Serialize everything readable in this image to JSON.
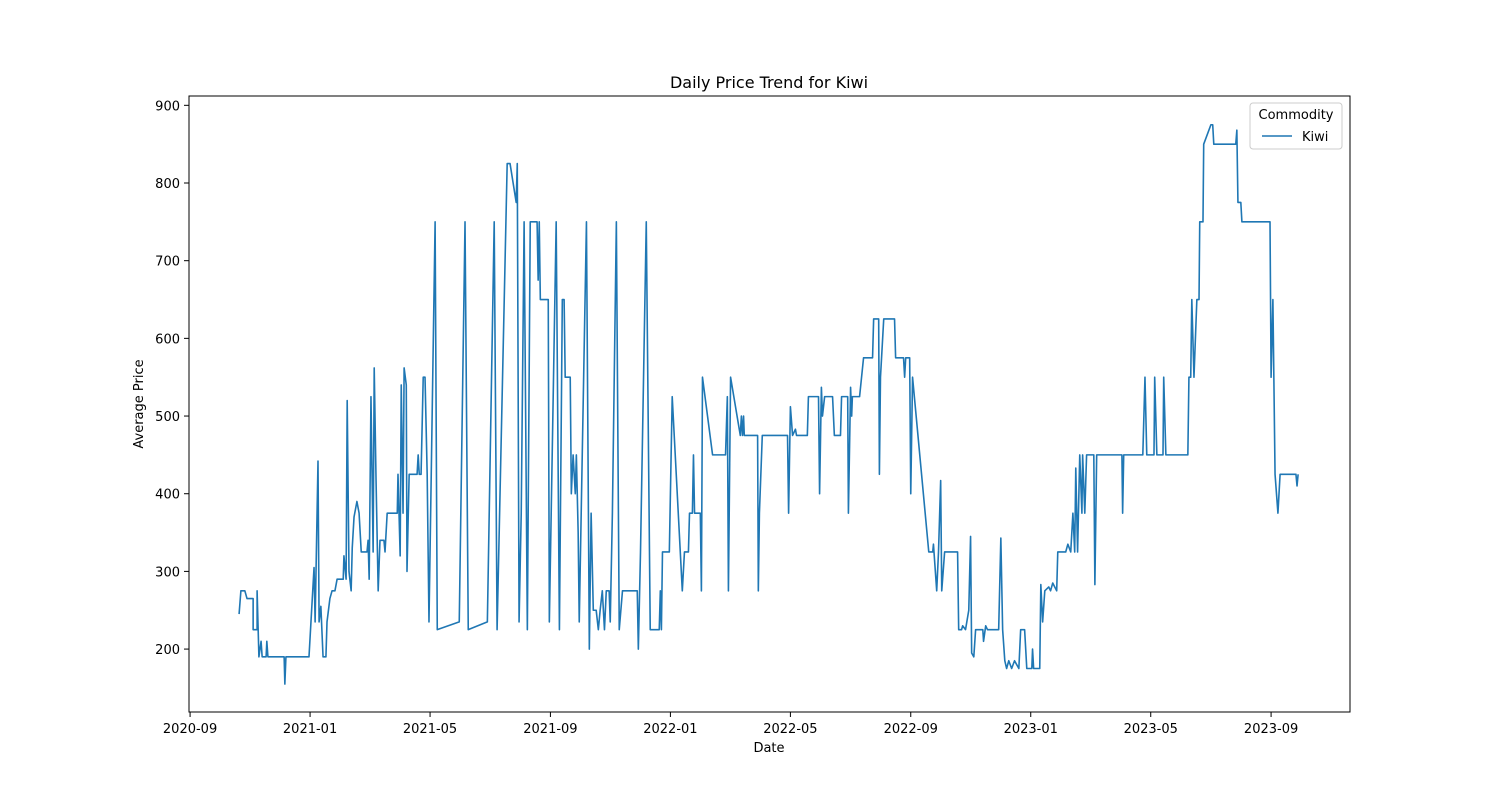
{
  "chart_data": {
    "type": "line",
    "title": "Daily Price Trend for Kiwi",
    "xlabel": "Date",
    "ylabel": "Average Price",
    "legend_title": "Commodity",
    "legend_loc": "upper right",
    "x": [
      2020.803,
      2020.808,
      2020.819,
      2020.825,
      2020.842,
      2020.842,
      2020.853,
      2020.853,
      2020.858,
      2020.864,
      2020.867,
      2020.878,
      2020.88,
      2020.883,
      2020.928,
      2020.93,
      2020.933,
      2020.997,
      2021.011,
      2021.014,
      2021.022,
      2021.025,
      2021.03,
      2021.036,
      2021.044,
      2021.047,
      2021.055,
      2021.061,
      2021.069,
      2021.075,
      2021.092,
      2021.094,
      2021.1,
      2021.103,
      2021.108,
      2021.114,
      2021.117,
      2021.122,
      2021.13,
      2021.136,
      2021.142,
      2021.158,
      2021.161,
      2021.164,
      2021.169,
      2021.175,
      2021.178,
      2021.183,
      2021.189,
      2021.194,
      2021.205,
      2021.208,
      2021.214,
      2021.242,
      2021.244,
      2021.25,
      2021.253,
      2021.258,
      2021.261,
      2021.267,
      2021.269,
      2021.275,
      2021.297,
      2021.3,
      2021.303,
      2021.308,
      2021.314,
      2021.319,
      2021.325,
      2021.33,
      2021.347,
      2021.353,
      2021.414,
      2021.43,
      2021.439,
      2021.492,
      2021.511,
      2021.519,
      2021.547,
      2021.555,
      2021.572,
      2021.575,
      2021.58,
      2021.586,
      2021.594,
      2021.603,
      2021.611,
      2021.63,
      2021.633,
      2021.636,
      2021.639,
      2021.644,
      2021.661,
      2021.664,
      2021.683,
      2021.692,
      2021.7,
      2021.705,
      2021.708,
      2021.722,
      2021.725,
      2021.73,
      2021.736,
      2021.739,
      2021.744,
      2021.747,
      2021.767,
      2021.775,
      2021.78,
      2021.786,
      2021.794,
      2021.8,
      2021.805,
      2021.811,
      2021.817,
      2021.822,
      2021.83,
      2021.833,
      2021.839,
      2021.85,
      2021.858,
      2021.867,
      2021.908,
      2021.911,
      2021.917,
      2021.933,
      2021.944,
      2021.969,
      2021.972,
      2021.975,
      2021.978,
      2021.997,
      2022.005,
      2022.033,
      2022.039,
      2022.05,
      2022.053,
      2022.061,
      2022.064,
      2022.067,
      2022.083,
      2022.086,
      2022.089,
      2022.117,
      2022.153,
      2022.158,
      2022.161,
      2022.167,
      2022.194,
      2022.197,
      2022.2,
      2022.203,
      2022.205,
      2022.242,
      2022.244,
      2022.247,
      2022.255,
      2022.325,
      2022.328,
      2022.333,
      2022.339,
      2022.347,
      2022.35,
      2022.38,
      2022.383,
      2022.411,
      2022.414,
      2022.419,
      2022.422,
      2022.428,
      2022.45,
      2022.455,
      2022.472,
      2022.475,
      2022.492,
      2022.494,
      2022.5,
      2022.503,
      2022.505,
      2022.525,
      2022.536,
      2022.561,
      2022.564,
      2022.578,
      2022.58,
      2022.583,
      2022.592,
      2022.622,
      2022.625,
      2022.647,
      2022.65,
      2022.653,
      2022.664,
      2022.667,
      2022.672,
      2022.717,
      2022.728,
      2022.73,
      2022.739,
      2022.744,
      2022.75,
      2022.753,
      2022.761,
      2022.797,
      2022.8,
      2022.808,
      2022.811,
      2022.819,
      2022.828,
      2022.833,
      2022.836,
      2022.842,
      2022.847,
      2022.867,
      2022.869,
      2022.875,
      2022.88,
      2022.911,
      2022.917,
      2022.922,
      2022.928,
      2022.933,
      2022.939,
      2022.947,
      2022.955,
      2022.967,
      2022.972,
      2022.983,
      2022.989,
      2023.003,
      2023.005,
      2023.008,
      2023.025,
      2023.028,
      2023.033,
      2023.039,
      2023.05,
      2023.055,
      2023.061,
      2023.072,
      2023.075,
      2023.097,
      2023.103,
      2023.111,
      2023.117,
      2023.122,
      2023.125,
      2023.13,
      2023.136,
      2023.142,
      2023.144,
      2023.15,
      2023.155,
      2023.175,
      2023.178,
      2023.183,
      2023.253,
      2023.255,
      2023.258,
      2023.311,
      2023.317,
      2023.322,
      2023.342,
      2023.344,
      2023.35,
      2023.367,
      2023.369,
      2023.375,
      2023.436,
      2023.439,
      2023.444,
      2023.447,
      2023.453,
      2023.461,
      2023.467,
      2023.469,
      2023.478,
      2023.48,
      2023.5,
      2023.505,
      2023.508,
      2023.569,
      2023.572,
      2023.575,
      2023.583,
      2023.586,
      2023.664,
      2023.667,
      2023.672,
      2023.678,
      2023.686,
      2023.692,
      2023.736,
      2023.739,
      2023.742
    ],
    "series": [
      {
        "name": "Kiwi",
        "color": "#1f77b4",
        "values": [
          245,
          275,
          275,
          265,
          265,
          225,
          225,
          275,
          190,
          210,
          190,
          190,
          210,
          190,
          190,
          155,
          190,
          190,
          305,
          235,
          442,
          235,
          255,
          190,
          190,
          235,
          265,
          275,
          275,
          290,
          290,
          320,
          290,
          520,
          300,
          275,
          330,
          370,
          390,
          375,
          325,
          325,
          340,
          290,
          525,
          325,
          562,
          420,
          275,
          340,
          340,
          325,
          375,
          375,
          425,
          320,
          540,
          375,
          562,
          540,
          300,
          425,
          425,
          450,
          425,
          425,
          550,
          550,
          425,
          235,
          750,
          225,
          235,
          750,
          225,
          235,
          750,
          225,
          825,
          825,
          775,
          825,
          235,
          375,
          750,
          225,
          750,
          750,
          675,
          750,
          650,
          650,
          650,
          235,
          750,
          225,
          650,
          650,
          550,
          550,
          400,
          450,
          400,
          450,
          350,
          235,
          750,
          200,
          375,
          250,
          250,
          225,
          250,
          275,
          225,
          275,
          275,
          235,
          375,
          750,
          225,
          275,
          275,
          200,
          325,
          750,
          225,
          225,
          275,
          225,
          325,
          325,
          525,
          275,
          325,
          325,
          375,
          375,
          450,
          375,
          375,
          275,
          550,
          450,
          450,
          525,
          275,
          550,
          475,
          500,
          475,
          500,
          475,
          475,
          275,
          375,
          475,
          475,
          375,
          512,
          475,
          483,
          475,
          475,
          525,
          525,
          400,
          537,
          500,
          525,
          525,
          475,
          475,
          525,
          525,
          375,
          537,
          500,
          525,
          525,
          575,
          575,
          625,
          625,
          425,
          550,
          625,
          625,
          575,
          575,
          550,
          575,
          575,
          400,
          550,
          325,
          325,
          335,
          275,
          325,
          417,
          275,
          325,
          325,
          225,
          225,
          230,
          225,
          250,
          345,
          195,
          190,
          225,
          225,
          210,
          230,
          225,
          225,
          343,
          225,
          185,
          175,
          185,
          175,
          185,
          175,
          225,
          225,
          175,
          175,
          200,
          175,
          175,
          283,
          235,
          275,
          280,
          275,
          285,
          275,
          325,
          325,
          335,
          325,
          375,
          325,
          433,
          325,
          450,
          375,
          450,
          375,
          450,
          450,
          283,
          450,
          450,
          375,
          450,
          450,
          550,
          450,
          450,
          550,
          450,
          450,
          550,
          450,
          450,
          550,
          550,
          650,
          550,
          650,
          650,
          750,
          750,
          850,
          875,
          875,
          850,
          850,
          868,
          775,
          775,
          750,
          750,
          550,
          650,
          425,
          375,
          425,
          425,
          410,
          425
        ]
      }
    ],
    "xlim": [
      2020.664,
      2023.886
    ],
    "xticks": [
      {
        "value": 2020.667,
        "label": "2020-09"
      },
      {
        "value": 2021,
        "label": "2021-01"
      },
      {
        "value": 2021.333,
        "label": "2021-05"
      },
      {
        "value": 2021.667,
        "label": "2021-09"
      },
      {
        "value": 2022,
        "label": "2022-01"
      },
      {
        "value": 2022.333,
        "label": "2022-05"
      },
      {
        "value": 2022.667,
        "label": "2022-09"
      },
      {
        "value": 2023,
        "label": "2023-01"
      },
      {
        "value": 2023.333,
        "label": "2023-05"
      },
      {
        "value": 2023.667,
        "label": "2023-09"
      }
    ],
    "ylim": [
      119,
      912
    ],
    "yticks": [
      200,
      300,
      400,
      500,
      600,
      700,
      800,
      900
    ],
    "grid": false
  }
}
